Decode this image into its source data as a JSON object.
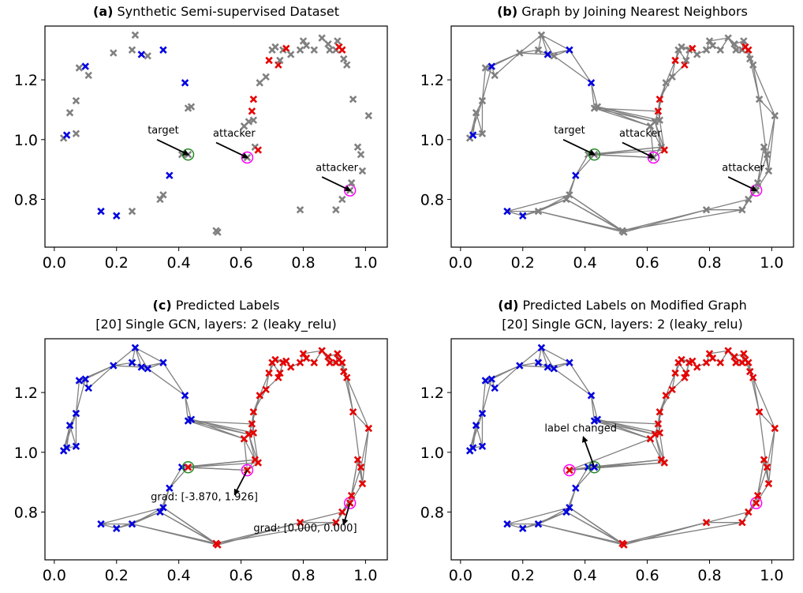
{
  "colors": {
    "gray": "#808080",
    "blue": "#0000e0",
    "red": "#e60000",
    "edge": "#808080",
    "target": "#228B22",
    "attacker": "#ff00ff",
    "arrow": "#000000"
  },
  "chart_data": [
    {
      "type": "scatter",
      "title_bold": "(a)",
      "title": "Synthetic Semi-supervised Dataset",
      "subtitle": "",
      "xlim": [
        -0.03,
        1.07
      ],
      "ylim": [
        0.64,
        1.38
      ],
      "xticks": [
        "0.0",
        "0.2",
        "0.4",
        "0.6",
        "0.8",
        "1.0"
      ],
      "yticks": [
        "0.8",
        "1.0",
        "1.2"
      ],
      "show_edges": false,
      "label_mode": "observed",
      "annotations": [
        {
          "text": "target",
          "xy": [
            0.43,
            0.95
          ],
          "xytext": [
            0.33,
            1.0
          ],
          "label_at": [
            0.3,
            1.02
          ]
        },
        {
          "text": "attacker",
          "xy": [
            0.62,
            0.94
          ],
          "xytext": [
            0.52,
            0.99
          ],
          "label_at": [
            0.51,
            1.01
          ]
        },
        {
          "text": "attacker",
          "xy": [
            0.95,
            0.83
          ],
          "xytext": [
            0.86,
            0.875
          ],
          "label_at": [
            0.84,
            0.895
          ]
        }
      ]
    },
    {
      "type": "scatter",
      "title_bold": "(b)",
      "title": "Graph by Joining Nearest Neighbors",
      "subtitle": "",
      "xlim": [
        -0.03,
        1.07
      ],
      "ylim": [
        0.64,
        1.38
      ],
      "xticks": [
        "0.0",
        "0.2",
        "0.4",
        "0.6",
        "0.8",
        "1.0"
      ],
      "yticks": [
        "0.8",
        "1.0",
        "1.2"
      ],
      "show_edges": true,
      "label_mode": "observed",
      "annotations": [
        {
          "text": "target",
          "xy": [
            0.43,
            0.95
          ],
          "xytext": [
            0.33,
            1.0
          ],
          "label_at": [
            0.3,
            1.02
          ]
        },
        {
          "text": "attacker",
          "xy": [
            0.62,
            0.94
          ],
          "xytext": [
            0.52,
            0.99
          ],
          "label_at": [
            0.51,
            1.01
          ]
        },
        {
          "text": "attacker",
          "xy": [
            0.95,
            0.83
          ],
          "xytext": [
            0.86,
            0.875
          ],
          "label_at": [
            0.84,
            0.895
          ]
        }
      ]
    },
    {
      "type": "scatter",
      "title_bold": "(c)",
      "title": "Predicted Labels",
      "subtitle": "[20] Single GCN, layers: 2 (leaky_relu)",
      "xlim": [
        -0.03,
        1.07
      ],
      "ylim": [
        0.64,
        1.38
      ],
      "xticks": [
        "0.0",
        "0.2",
        "0.4",
        "0.6",
        "0.8",
        "1.0"
      ],
      "yticks": [
        "0.8",
        "1.0",
        "1.2"
      ],
      "show_edges": true,
      "label_mode": "predicted",
      "annotations": [
        {
          "text": "grad: [-3.870, 1.926]",
          "xy": [
            0.58,
            0.86
          ],
          "xytext": [
            0.62,
            0.94
          ],
          "label_at": [
            0.31,
            0.84
          ]
        },
        {
          "text": "grad: [0.000, 0.000]",
          "xy": [
            0.93,
            0.76
          ],
          "xytext": [
            0.95,
            0.83
          ],
          "label_at": [
            0.64,
            0.735
          ]
        }
      ]
    },
    {
      "type": "scatter",
      "title_bold": "(d)",
      "title": "Predicted Labels on Modified Graph",
      "subtitle": "[20] Single GCN, layers: 2 (leaky_relu)",
      "xlim": [
        -0.03,
        1.07
      ],
      "ylim": [
        0.64,
        1.38
      ],
      "xticks": [
        "0.0",
        "0.2",
        "0.4",
        "0.6",
        "0.8",
        "1.0"
      ],
      "yticks": [
        "0.8",
        "1.0",
        "1.2"
      ],
      "show_edges": true,
      "label_mode": "predicted_modified",
      "annotations": [
        {
          "text": "label changed",
          "xy": [
            0.395,
            1.05
          ],
          "xytext": [
            0.43,
            0.95
          ],
          "label_at": [
            0.27,
            1.07
          ]
        }
      ]
    }
  ],
  "points": [
    {
      "x": 0.03,
      "y": 1.005,
      "label": "unlabeled",
      "pred": "blue"
    },
    {
      "x": 0.04,
      "y": 1.015,
      "label": "blue",
      "pred": "blue"
    },
    {
      "x": 0.05,
      "y": 1.09,
      "label": "unlabeled",
      "pred": "blue"
    },
    {
      "x": 0.07,
      "y": 1.02,
      "label": "unlabeled",
      "pred": "blue"
    },
    {
      "x": 0.07,
      "y": 1.13,
      "label": "unlabeled",
      "pred": "blue"
    },
    {
      "x": 0.08,
      "y": 1.24,
      "label": "unlabeled",
      "pred": "blue"
    },
    {
      "x": 0.1,
      "y": 1.245,
      "label": "blue",
      "pred": "blue"
    },
    {
      "x": 0.11,
      "y": 1.215,
      "label": "unlabeled",
      "pred": "blue"
    },
    {
      "x": 0.15,
      "y": 0.76,
      "label": "blue",
      "pred": "blue"
    },
    {
      "x": 0.19,
      "y": 1.29,
      "label": "unlabeled",
      "pred": "blue"
    },
    {
      "x": 0.2,
      "y": 0.745,
      "label": "blue",
      "pred": "blue"
    },
    {
      "x": 0.25,
      "y": 0.76,
      "label": "unlabeled",
      "pred": "blue"
    },
    {
      "x": 0.25,
      "y": 1.3,
      "label": "unlabeled",
      "pred": "blue"
    },
    {
      "x": 0.26,
      "y": 1.35,
      "label": "unlabeled",
      "pred": "blue"
    },
    {
      "x": 0.28,
      "y": 1.285,
      "label": "blue",
      "pred": "blue"
    },
    {
      "x": 0.3,
      "y": 1.28,
      "label": "unlabeled",
      "pred": "blue"
    },
    {
      "x": 0.35,
      "y": 1.3,
      "label": "blue",
      "pred": "blue"
    },
    {
      "x": 0.34,
      "y": 0.8,
      "label": "unlabeled",
      "pred": "blue"
    },
    {
      "x": 0.35,
      "y": 0.815,
      "label": "unlabeled",
      "pred": "blue"
    },
    {
      "x": 0.37,
      "y": 0.88,
      "label": "blue",
      "pred": "blue"
    },
    {
      "x": 0.41,
      "y": 0.95,
      "label": "unlabeled",
      "pred": "blue"
    },
    {
      "x": 0.42,
      "y": 1.19,
      "label": "blue",
      "pred": "blue"
    },
    {
      "x": 0.43,
      "y": 1.105,
      "label": "unlabeled",
      "pred": "blue"
    },
    {
      "x": 0.44,
      "y": 1.11,
      "label": "unlabeled",
      "pred": "blue"
    },
    {
      "x": 0.43,
      "y": 0.95,
      "label": "unlabeled",
      "pred": "red",
      "pred_mod": "blue",
      "role": "target"
    },
    {
      "x": 0.52,
      "y": 0.695,
      "label": "unlabeled",
      "pred": "red"
    },
    {
      "x": 0.525,
      "y": 0.69,
      "label": "unlabeled",
      "pred": "red"
    },
    {
      "x": 0.62,
      "y": 0.94,
      "label": "unlabeled",
      "pred": "red",
      "role": "attacker",
      "mod_x": 0.35
    },
    {
      "x": 0.61,
      "y": 1.045,
      "label": "unlabeled",
      "pred": "red"
    },
    {
      "x": 0.625,
      "y": 1.06,
      "label": "unlabeled",
      "pred": "red"
    },
    {
      "x": 0.635,
      "y": 1.095,
      "label": "red",
      "pred": "red"
    },
    {
      "x": 0.64,
      "y": 1.065,
      "label": "unlabeled",
      "pred": "red"
    },
    {
      "x": 0.64,
      "y": 1.135,
      "label": "red",
      "pred": "red"
    },
    {
      "x": 0.645,
      "y": 0.975,
      "label": "unlabeled",
      "pred": "red"
    },
    {
      "x": 0.655,
      "y": 0.965,
      "label": "red",
      "pred": "red"
    },
    {
      "x": 0.66,
      "y": 1.19,
      "label": "unlabeled",
      "pred": "red"
    },
    {
      "x": 0.68,
      "y": 1.21,
      "label": "unlabeled",
      "pred": "red"
    },
    {
      "x": 0.69,
      "y": 1.265,
      "label": "red",
      "pred": "red"
    },
    {
      "x": 0.7,
      "y": 1.3,
      "label": "unlabeled",
      "pred": "red"
    },
    {
      "x": 0.71,
      "y": 1.31,
      "label": "unlabeled",
      "pred": "red"
    },
    {
      "x": 0.72,
      "y": 1.25,
      "label": "red",
      "pred": "red"
    },
    {
      "x": 0.725,
      "y": 1.265,
      "label": "unlabeled",
      "pred": "red"
    },
    {
      "x": 0.735,
      "y": 1.3,
      "label": "unlabeled",
      "pred": "red"
    },
    {
      "x": 0.745,
      "y": 1.305,
      "label": "red",
      "pred": "red"
    },
    {
      "x": 0.76,
      "y": 1.285,
      "label": "unlabeled",
      "pred": "red"
    },
    {
      "x": 0.79,
      "y": 1.3,
      "label": "unlabeled",
      "pred": "red"
    },
    {
      "x": 0.8,
      "y": 1.33,
      "label": "unlabeled",
      "pred": "red"
    },
    {
      "x": 0.79,
      "y": 0.765,
      "label": "unlabeled",
      "pred": "red"
    },
    {
      "x": 0.81,
      "y": 1.315,
      "label": "unlabeled",
      "pred": "red"
    },
    {
      "x": 0.835,
      "y": 1.3,
      "label": "unlabeled",
      "pred": "red"
    },
    {
      "x": 0.86,
      "y": 1.34,
      "label": "unlabeled",
      "pred": "red"
    },
    {
      "x": 0.88,
      "y": 1.32,
      "label": "unlabeled",
      "pred": "red"
    },
    {
      "x": 0.885,
      "y": 1.3,
      "label": "unlabeled",
      "pred": "red"
    },
    {
      "x": 0.905,
      "y": 1.3,
      "label": "unlabeled",
      "pred": "red"
    },
    {
      "x": 0.91,
      "y": 1.33,
      "label": "unlabeled",
      "pred": "red"
    },
    {
      "x": 0.915,
      "y": 1.31,
      "label": "red",
      "pred": "red"
    },
    {
      "x": 0.925,
      "y": 1.3,
      "label": "red",
      "pred": "red"
    },
    {
      "x": 0.905,
      "y": 0.765,
      "label": "unlabeled",
      "pred": "red"
    },
    {
      "x": 0.925,
      "y": 0.8,
      "label": "unlabeled",
      "pred": "red"
    },
    {
      "x": 0.93,
      "y": 1.27,
      "label": "unlabeled",
      "pred": "red"
    },
    {
      "x": 0.94,
      "y": 1.25,
      "label": "unlabeled",
      "pred": "red"
    },
    {
      "x": 0.95,
      "y": 0.83,
      "label": "unlabeled",
      "pred": "red",
      "role": "attacker"
    },
    {
      "x": 0.955,
      "y": 0.855,
      "label": "unlabeled",
      "pred": "red"
    },
    {
      "x": 0.96,
      "y": 1.135,
      "label": "unlabeled",
      "pred": "red"
    },
    {
      "x": 0.975,
      "y": 0.975,
      "label": "unlabeled",
      "pred": "red"
    },
    {
      "x": 0.985,
      "y": 0.95,
      "label": "unlabeled",
      "pred": "red"
    },
    {
      "x": 0.99,
      "y": 0.895,
      "label": "unlabeled",
      "pred": "red"
    },
    {
      "x": 1.01,
      "y": 1.08,
      "label": "unlabeled",
      "pred": "red"
    }
  ],
  "edges": [
    [
      0,
      1
    ],
    [
      0,
      2
    ],
    [
      1,
      2
    ],
    [
      1,
      3
    ],
    [
      2,
      3
    ],
    [
      2,
      4
    ],
    [
      0,
      4
    ],
    [
      3,
      4
    ],
    [
      4,
      5
    ],
    [
      4,
      6
    ],
    [
      5,
      6
    ],
    [
      5,
      7
    ],
    [
      6,
      7
    ],
    [
      5,
      9
    ],
    [
      6,
      9
    ],
    [
      7,
      9
    ],
    [
      9,
      12
    ],
    [
      9,
      13
    ],
    [
      9,
      14
    ],
    [
      12,
      13
    ],
    [
      12,
      14
    ],
    [
      13,
      14
    ],
    [
      13,
      15
    ],
    [
      14,
      15
    ],
    [
      13,
      16
    ],
    [
      15,
      16
    ],
    [
      14,
      16
    ],
    [
      16,
      21
    ],
    [
      15,
      21
    ],
    [
      21,
      22
    ],
    [
      21,
      23
    ],
    [
      22,
      23
    ],
    [
      22,
      29
    ],
    [
      23,
      29
    ],
    [
      22,
      28
    ],
    [
      23,
      28
    ],
    [
      23,
      31
    ],
    [
      22,
      30
    ],
    [
      28,
      29
    ],
    [
      29,
      30
    ],
    [
      30,
      31
    ],
    [
      30,
      32
    ],
    [
      31,
      32
    ],
    [
      32,
      35
    ],
    [
      30,
      35
    ],
    [
      35,
      36
    ],
    [
      32,
      36
    ],
    [
      36,
      37
    ],
    [
      35,
      37
    ],
    [
      37,
      38
    ],
    [
      37,
      39
    ],
    [
      38,
      39
    ],
    [
      36,
      40
    ],
    [
      40,
      41
    ],
    [
      38,
      41
    ],
    [
      39,
      42
    ],
    [
      40,
      42
    ],
    [
      41,
      42
    ],
    [
      42,
      43
    ],
    [
      43,
      44
    ],
    [
      39,
      43
    ],
    [
      44,
      45
    ],
    [
      45,
      46
    ],
    [
      45,
      48
    ],
    [
      46,
      48
    ],
    [
      48,
      49
    ],
    [
      49,
      50
    ],
    [
      46,
      50
    ],
    [
      50,
      51
    ],
    [
      51,
      52
    ],
    [
      50,
      52
    ],
    [
      52,
      53
    ],
    [
      53,
      54
    ],
    [
      53,
      55
    ],
    [
      54,
      55
    ],
    [
      51,
      54
    ],
    [
      55,
      56
    ],
    [
      56,
      59
    ],
    [
      55,
      59
    ],
    [
      59,
      60
    ],
    [
      56,
      60
    ],
    [
      60,
      63
    ],
    [
      59,
      63
    ],
    [
      63,
      67
    ],
    [
      60,
      67
    ],
    [
      67,
      66
    ],
    [
      63,
      66
    ],
    [
      66,
      65
    ],
    [
      66,
      64
    ],
    [
      65,
      64
    ],
    [
      67,
      65
    ],
    [
      64,
      62
    ],
    [
      65,
      62
    ],
    [
      62,
      61
    ],
    [
      64,
      61
    ],
    [
      66,
      61
    ],
    [
      61,
      58
    ],
    [
      62,
      58
    ],
    [
      58,
      57
    ],
    [
      61,
      57
    ],
    [
      57,
      47
    ],
    [
      58,
      47
    ],
    [
      47,
      25
    ],
    [
      47,
      26
    ],
    [
      57,
      25
    ],
    [
      25,
      18
    ],
    [
      26,
      18
    ],
    [
      25,
      17
    ],
    [
      26,
      17
    ],
    [
      25,
      11
    ],
    [
      26,
      11
    ],
    [
      17,
      18
    ],
    [
      17,
      11
    ],
    [
      18,
      11
    ],
    [
      11,
      10
    ],
    [
      11,
      8
    ],
    [
      10,
      8
    ],
    [
      17,
      10
    ],
    [
      18,
      8
    ],
    [
      17,
      19
    ],
    [
      18,
      19
    ],
    [
      19,
      20
    ],
    [
      19,
      24
    ],
    [
      20,
      24
    ],
    [
      24,
      27
    ],
    [
      20,
      27
    ],
    [
      24,
      33
    ],
    [
      20,
      33
    ],
    [
      24,
      34
    ],
    [
      27,
      33
    ],
    [
      27,
      34
    ],
    [
      33,
      34
    ],
    [
      27,
      28
    ],
    [
      33,
      28
    ],
    [
      34,
      29
    ],
    [
      33,
      29
    ],
    [
      34,
      31
    ]
  ],
  "mod_extra_edges": [
    [
      27,
      20
    ],
    [
      27,
      24
    ]
  ]
}
